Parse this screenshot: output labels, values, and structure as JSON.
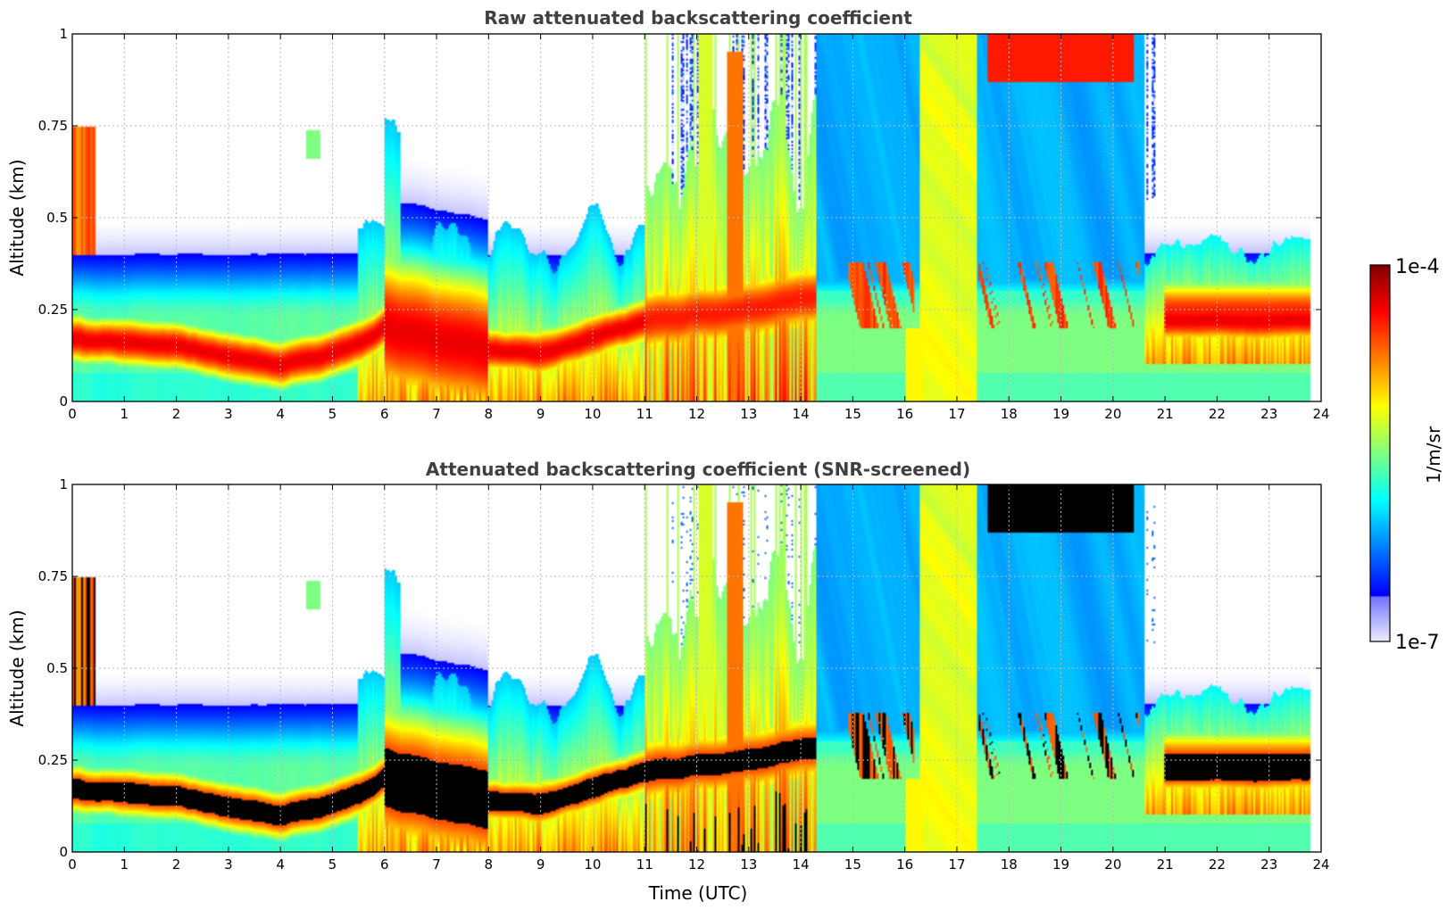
{
  "chart_data": [
    {
      "type": "heatmap",
      "title": "Raw attenuated backscattering coefficient",
      "xlabel": "",
      "ylabel": "Altitude (km)",
      "xlim": [
        0,
        24
      ],
      "ylim": [
        0,
        1
      ],
      "xticks": [
        0,
        1,
        2,
        3,
        4,
        5,
        6,
        7,
        8,
        9,
        10,
        11,
        12,
        13,
        14,
        15,
        16,
        17,
        18,
        19,
        20,
        21,
        22,
        23,
        24
      ],
      "yticks": [
        0,
        0.25,
        0.5,
        0.75,
        1
      ],
      "ytick_labels": [
        "0",
        "0.25",
        "0.5",
        "0.75",
        "1"
      ],
      "grid": true,
      "data_end_hour": 23.8,
      "colorscale": "jet",
      "screened": false
    },
    {
      "type": "heatmap",
      "title": "Attenuated backscattering coefficient (SNR-screened)",
      "xlabel": "Time (UTC)",
      "ylabel": "Altitude (km)",
      "xlim": [
        0,
        24
      ],
      "ylim": [
        0,
        1
      ],
      "xticks": [
        0,
        1,
        2,
        3,
        4,
        5,
        6,
        7,
        8,
        9,
        10,
        11,
        12,
        13,
        14,
        15,
        16,
        17,
        18,
        19,
        20,
        21,
        22,
        23,
        24
      ],
      "yticks": [
        0,
        0.25,
        0.5,
        0.75,
        1
      ],
      "ytick_labels": [
        "0",
        "0.25",
        "0.5",
        "0.75",
        "1"
      ],
      "grid": true,
      "data_end_hour": 23.8,
      "colorscale": "jet",
      "screened": true
    }
  ],
  "colorbar": {
    "max_label": "1e-4",
    "min_label": "1e-7",
    "unit": "1/m/sr",
    "log_min": -7,
    "log_max": -4
  },
  "colors": {
    "saturated_screen": "#000000",
    "title_color": "#404040",
    "grid_color": "#bbbbbb"
  }
}
